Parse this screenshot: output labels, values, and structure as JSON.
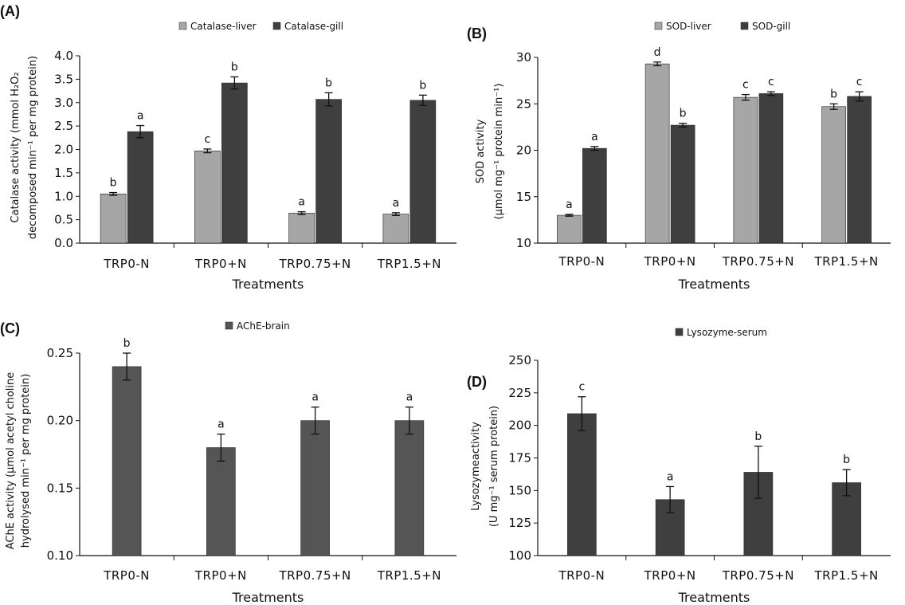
{
  "colors": {
    "light_bar": "#a6a6a6",
    "dark_bar": "#3f3f3f",
    "mid_bar": "#555555"
  },
  "chart_data": [
    {
      "panel": "(A)",
      "type": "bar",
      "categories": [
        "TRP0-N",
        "TRP0+N",
        "TRP0.75+N",
        "TRP1.5+N"
      ],
      "xlabel": "Treatments",
      "ylabel_lines": [
        "Catalase activity (mmol H₂O₂",
        "decomposed min⁻¹ per mg protein)"
      ],
      "ylim": [
        0,
        4
      ],
      "yticks": [
        "0.0",
        "0.5",
        "1.0",
        "1.5",
        "2.0",
        "2.5",
        "3.0",
        "3.5",
        "4.0"
      ],
      "legend_position": "top",
      "series": [
        {
          "name": "Catalase-liver",
          "values": [
            1.05,
            1.97,
            0.64,
            0.62
          ],
          "errors": [
            0.03,
            0.04,
            0.03,
            0.03
          ],
          "letters": [
            "b",
            "c",
            "a",
            "a"
          ]
        },
        {
          "name": "Catalase-gill",
          "values": [
            2.38,
            3.42,
            3.07,
            3.05
          ],
          "errors": [
            0.13,
            0.13,
            0.14,
            0.11
          ],
          "letters": [
            "a",
            "b",
            "b",
            "b"
          ]
        }
      ]
    },
    {
      "panel": "(B)",
      "type": "bar",
      "categories": [
        "TRP0-N",
        "TRP0+N",
        "TRP0.75+N",
        "TRP1.5+N"
      ],
      "xlabel": "Treatments",
      "ylabel_lines": [
        "SOD activity",
        "(µmol mg⁻¹ protein min⁻¹)"
      ],
      "ylim": [
        10,
        30
      ],
      "yticks": [
        "10",
        "15",
        "20",
        "25",
        "30"
      ],
      "legend_position": "top",
      "series": [
        {
          "name": "SOD-liver",
          "values": [
            13.0,
            29.3,
            25.7,
            24.7
          ],
          "errors": [
            0.1,
            0.2,
            0.3,
            0.3
          ],
          "letters": [
            "a",
            "d",
            "c",
            "b"
          ]
        },
        {
          "name": "SOD-gill",
          "values": [
            20.2,
            22.7,
            26.1,
            25.8
          ],
          "errors": [
            0.2,
            0.2,
            0.2,
            0.5
          ],
          "letters": [
            "a",
            "b",
            "c",
            "c"
          ]
        }
      ]
    },
    {
      "panel": "(C)",
      "type": "bar",
      "categories": [
        "TRP0-N",
        "TRP0+N",
        "TRP0.75+N",
        "TRP1.5+N"
      ],
      "xlabel": "Treatments",
      "ylabel_lines": [
        "AChE activity (µmol acetyl choline",
        "hydrolysed min⁻¹ per mg protein)"
      ],
      "ylim": [
        0.1,
        0.25
      ],
      "yticks": [
        "0.10",
        "0.15",
        "0.20",
        "0.25"
      ],
      "legend_position": "top",
      "series": [
        {
          "name": "AChE-brain",
          "values": [
            0.24,
            0.18,
            0.2,
            0.2
          ],
          "errors": [
            0.01,
            0.01,
            0.01,
            0.01
          ],
          "letters": [
            "b",
            "a",
            "a",
            "a"
          ]
        }
      ]
    },
    {
      "panel": "(D)",
      "type": "bar",
      "categories": [
        "TRP0-N",
        "TRP0+N",
        "TRP0.75+N",
        "TRP1.5+N"
      ],
      "xlabel": "Treatments",
      "ylabel_lines": [
        "Lysozymeactivity",
        "(U mg⁻¹ serum protein)"
      ],
      "ylim": [
        100,
        250
      ],
      "yticks": [
        "100",
        "125",
        "150",
        "175",
        "200",
        "225",
        "250"
      ],
      "legend_position": "top",
      "series": [
        {
          "name": "Lysozyme-serum",
          "values": [
            209,
            143,
            164,
            156
          ],
          "errors": [
            13,
            10,
            20,
            10
          ],
          "letters": [
            "c",
            "a",
            "b",
            "b"
          ]
        }
      ]
    }
  ]
}
